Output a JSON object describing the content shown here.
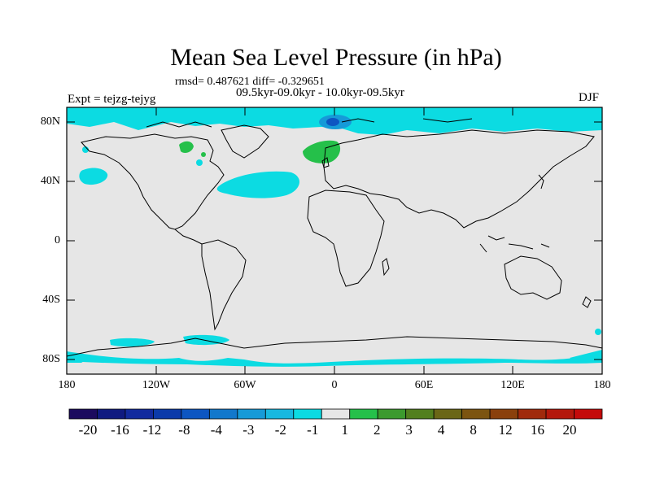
{
  "title": "Mean Sea Level Pressure (in hPa)",
  "stats": "rmsd= 0.487621 diff= -0.329651",
  "period": "09.5kyr-09.0kyr - 10.0kyr-09.5kyr",
  "experiment": "Expt = tejzg-tejyg",
  "season": "DJF",
  "lat_ticks": [
    "80N",
    "40N",
    "0",
    "40S",
    "80S"
  ],
  "lon_ticks": [
    "180",
    "120W",
    "60W",
    "0",
    "60E",
    "120E",
    "180"
  ],
  "colorbar": {
    "labels": [
      "-20",
      "-16",
      "-12",
      "-8",
      "-4",
      "-3",
      "-2",
      "-1",
      "1",
      "2",
      "3",
      "4",
      "8",
      "12",
      "16",
      "20"
    ],
    "colors": [
      "#1b0a5e",
      "#0f1a80",
      "#122a9e",
      "#0b3aaa",
      "#0d56c2",
      "#1278cc",
      "#169ad8",
      "#18b8e0",
      "#0cdbe2",
      "#e6e6e6",
      "#25c04a",
      "#3c9a2e",
      "#527f1e",
      "#6a6616",
      "#7c5410",
      "#8a400c",
      "#a02a0c",
      "#b4180c",
      "#c40a0a"
    ]
  },
  "colors": {
    "background_field": "#e6e6e6",
    "negative_anomaly": "#0cdbe2",
    "strong_negative": "#169ad8",
    "positive_anomaly": "#25c04a",
    "coastline": "#000000"
  }
}
